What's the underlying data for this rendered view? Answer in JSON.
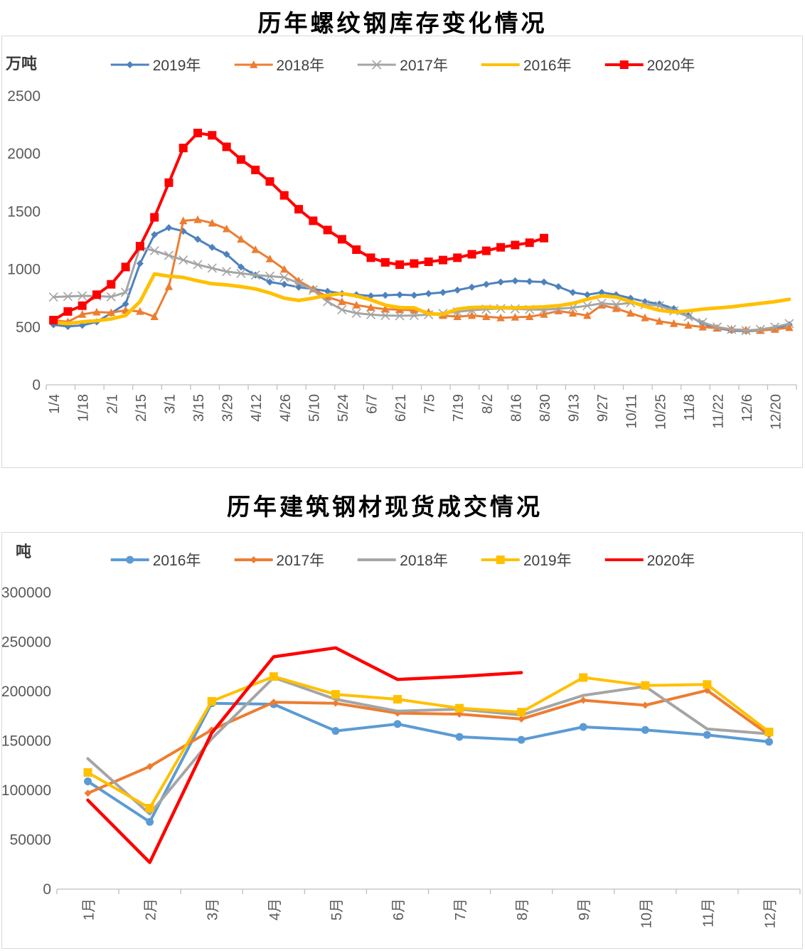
{
  "chart_data": [
    {
      "type": "line",
      "title": "历年螺纹钢库存变化情况",
      "unit_label": "万吨",
      "ylim": [
        0,
        2500
      ],
      "y_ticks": [
        0,
        500,
        1000,
        1500,
        2000,
        2500
      ],
      "x_tick_labels": [
        "1/4",
        "1/18",
        "2/1",
        "2/15",
        "3/1",
        "3/15",
        "3/29",
        "4/12",
        "4/26",
        "5/10",
        "5/24",
        "6/7",
        "6/21",
        "7/5",
        "7/19",
        "8/2",
        "8/16",
        "8/30",
        "9/13",
        "9/27",
        "10/11",
        "10/25",
        "11/8",
        "11/22",
        "12/6",
        "12/20"
      ],
      "points_per_label": 2,
      "grid": false,
      "legend_position": "top",
      "series": [
        {
          "name": "2019年",
          "color": "#4E81BD",
          "marker": "diamond",
          "line_width": 3,
          "values": [
            520,
            505,
            515,
            545,
            620,
            700,
            1050,
            1300,
            1360,
            1330,
            1260,
            1190,
            1130,
            1020,
            950,
            890,
            870,
            845,
            830,
            810,
            790,
            780,
            770,
            775,
            780,
            775,
            790,
            800,
            820,
            845,
            870,
            890,
            900,
            895,
            890,
            850,
            800,
            780,
            800,
            780,
            750,
            720,
            700,
            660,
            600,
            530,
            490,
            470,
            465,
            470,
            490,
            520
          ]
        },
        {
          "name": "2018年",
          "color": "#ED7D31",
          "marker": "triangle",
          "line_width": 3,
          "values": [
            560,
            545,
            610,
            630,
            625,
            645,
            635,
            590,
            850,
            1420,
            1430,
            1400,
            1350,
            1260,
            1170,
            1090,
            1000,
            900,
            830,
            760,
            720,
            690,
            670,
            655,
            650,
            645,
            630,
            600,
            590,
            600,
            590,
            580,
            585,
            590,
            610,
            640,
            620,
            600,
            690,
            660,
            620,
            580,
            550,
            530,
            515,
            500,
            490,
            480,
            475,
            470,
            480,
            495
          ]
        },
        {
          "name": "2017年",
          "color": "#A5A5A5",
          "marker": "x",
          "line_width": 3,
          "values": [
            760,
            765,
            770,
            768,
            762,
            800,
            1190,
            1160,
            1120,
            1080,
            1040,
            1010,
            980,
            965,
            950,
            940,
            930,
            880,
            820,
            720,
            650,
            620,
            608,
            600,
            598,
            600,
            608,
            618,
            632,
            645,
            655,
            660,
            658,
            652,
            650,
            658,
            668,
            685,
            705,
            695,
            710,
            695,
            685,
            640,
            590,
            540,
            500,
            480,
            470,
            480,
            500,
            530
          ]
        },
        {
          "name": "2016年",
          "color": "#FFC000",
          "marker": "none",
          "line_width": 5,
          "values": [
            540,
            530,
            545,
            555,
            570,
            600,
            720,
            960,
            940,
            930,
            900,
            875,
            865,
            850,
            830,
            795,
            750,
            730,
            750,
            775,
            790,
            770,
            735,
            690,
            668,
            666,
            615,
            610,
            655,
            670,
            672,
            668,
            666,
            670,
            675,
            685,
            705,
            740,
            770,
            760,
            720,
            680,
            645,
            630,
            640,
            655,
            665,
            675,
            690,
            705,
            720,
            740
          ]
        },
        {
          "name": "2020年",
          "color": "#FF0000",
          "marker": "square",
          "line_width": 4,
          "values": [
            560,
            635,
            685,
            780,
            870,
            1020,
            1200,
            1450,
            1750,
            2050,
            2180,
            2160,
            2060,
            1950,
            1860,
            1760,
            1640,
            1520,
            1420,
            1340,
            1260,
            1170,
            1100,
            1060,
            1040,
            1050,
            1065,
            1080,
            1100,
            1130,
            1160,
            1190,
            1210,
            1230,
            1270
          ]
        }
      ]
    },
    {
      "type": "line",
      "title": "历年建筑钢材现货成交情况",
      "unit_label": "吨",
      "ylim": [
        0,
        300000
      ],
      "y_ticks": [
        0,
        50000,
        100000,
        150000,
        200000,
        250000,
        300000
      ],
      "x_tick_labels": [
        "1月",
        "2月",
        "3月",
        "4月",
        "5月",
        "6月",
        "7月",
        "8月",
        "9月",
        "10月",
        "11月",
        "12月"
      ],
      "points_per_label": 1,
      "grid": false,
      "legend_position": "top",
      "series": [
        {
          "name": "2016年",
          "color": "#5B9BD5",
          "marker": "circle",
          "line_width": 4,
          "values": [
            109000,
            68000,
            188000,
            187000,
            160000,
            167000,
            154000,
            151000,
            164000,
            161000,
            156000,
            149000
          ]
        },
        {
          "name": "2017年",
          "color": "#ED7D31",
          "marker": "diamond",
          "line_width": 4,
          "values": [
            97000,
            124000,
            161000,
            189000,
            188000,
            178000,
            177000,
            172000,
            191000,
            186000,
            201000,
            156000
          ]
        },
        {
          "name": "2018年",
          "color": "#A5A5A5",
          "marker": "none",
          "line_width": 4,
          "values": [
            132000,
            76000,
            152000,
            214000,
            192000,
            180000,
            182000,
            176000,
            196000,
            205000,
            162000,
            157000
          ]
        },
        {
          "name": "2019年",
          "color": "#FFC000",
          "marker": "square",
          "line_width": 4,
          "values": [
            118000,
            82000,
            190000,
            215000,
            197000,
            192000,
            183000,
            179000,
            214000,
            206000,
            207000,
            159000
          ]
        },
        {
          "name": "2020年",
          "color": "#FF0000",
          "marker": "none",
          "line_width": 4.5,
          "values": [
            90000,
            27000,
            158000,
            235000,
            244000,
            212000,
            215000,
            219000
          ]
        }
      ]
    }
  ],
  "styles": {
    "axis_color": "#bfbfbf",
    "tick_label_color": "#595959",
    "border_color": "#d9d9d9"
  }
}
